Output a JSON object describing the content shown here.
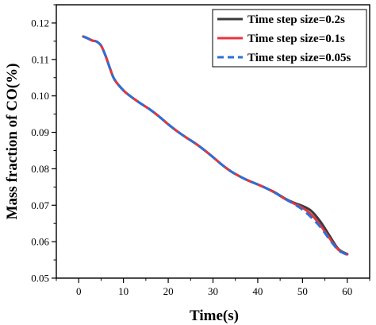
{
  "chart_data": {
    "type": "line",
    "xlabel": "Time(s)",
    "ylabel": "Mass fraction of CO(%)",
    "xlim": [
      -5,
      65
    ],
    "ylim": [
      0.05,
      0.125
    ],
    "xticks": [
      "0",
      "10",
      "20",
      "30",
      "40",
      "50",
      "60"
    ],
    "yticks": [
      "0.05",
      "0.06",
      "0.07",
      "0.08",
      "0.09",
      "0.10",
      "0.11",
      "0.12"
    ],
    "grid": false,
    "legend_position": "top-right",
    "series": [
      {
        "name": "Time step size=0.2s",
        "color": "#3a3a3a",
        "style": "solid",
        "x": [
          1,
          2,
          3,
          4,
          5,
          6,
          7,
          8,
          10,
          12,
          14,
          16,
          18,
          20,
          22,
          24,
          26,
          28,
          30,
          32,
          34,
          36,
          38,
          40,
          42,
          44,
          46,
          48,
          50,
          52,
          54,
          56,
          58,
          60
        ],
        "y": [
          0.1163,
          0.1158,
          0.1152,
          0.1149,
          0.1138,
          0.111,
          0.1075,
          0.1045,
          0.1015,
          0.0995,
          0.0978,
          0.0962,
          0.0943,
          0.0922,
          0.0903,
          0.0886,
          0.087,
          0.0852,
          0.0832,
          0.0811,
          0.0793,
          0.0779,
          0.0767,
          0.0757,
          0.0746,
          0.0734,
          0.0719,
          0.0707,
          0.0698,
          0.0684,
          0.0655,
          0.0617,
          0.058,
          0.0566
        ]
      },
      {
        "name": "Time step size=0.1s",
        "color": "#e8343c",
        "style": "solid",
        "x": [
          1,
          2,
          3,
          4,
          5,
          6,
          7,
          8,
          10,
          12,
          14,
          16,
          18,
          20,
          22,
          24,
          26,
          28,
          30,
          32,
          34,
          36,
          38,
          40,
          42,
          44,
          46,
          48,
          50,
          52,
          54,
          56,
          58,
          60
        ],
        "y": [
          0.1163,
          0.1158,
          0.1152,
          0.1149,
          0.1138,
          0.111,
          0.1075,
          0.1045,
          0.1015,
          0.0995,
          0.0978,
          0.0962,
          0.0943,
          0.0922,
          0.0903,
          0.0886,
          0.087,
          0.0852,
          0.0832,
          0.0811,
          0.0793,
          0.0779,
          0.0767,
          0.0757,
          0.0746,
          0.0733,
          0.0718,
          0.0705,
          0.0693,
          0.0674,
          0.0645,
          0.061,
          0.0578,
          0.0565
        ]
      },
      {
        "name": "Time step size=0.05s",
        "color": "#2e6fd6",
        "style": "dashed",
        "x": [
          1,
          2,
          3,
          4,
          5,
          6,
          7,
          8,
          10,
          12,
          14,
          16,
          18,
          20,
          22,
          24,
          26,
          28,
          30,
          32,
          34,
          36,
          38,
          40,
          42,
          44,
          46,
          48,
          50,
          52,
          54,
          56,
          58,
          60
        ],
        "y": [
          0.1163,
          0.1158,
          0.1152,
          0.1149,
          0.1138,
          0.111,
          0.1075,
          0.1045,
          0.1015,
          0.0995,
          0.0978,
          0.0962,
          0.0943,
          0.0922,
          0.0903,
          0.0886,
          0.087,
          0.0852,
          0.0832,
          0.0811,
          0.0793,
          0.0779,
          0.0767,
          0.0757,
          0.0746,
          0.0733,
          0.0718,
          0.0704,
          0.0688,
          0.0666,
          0.064,
          0.0607,
          0.0577,
          0.0564
        ]
      }
    ]
  }
}
